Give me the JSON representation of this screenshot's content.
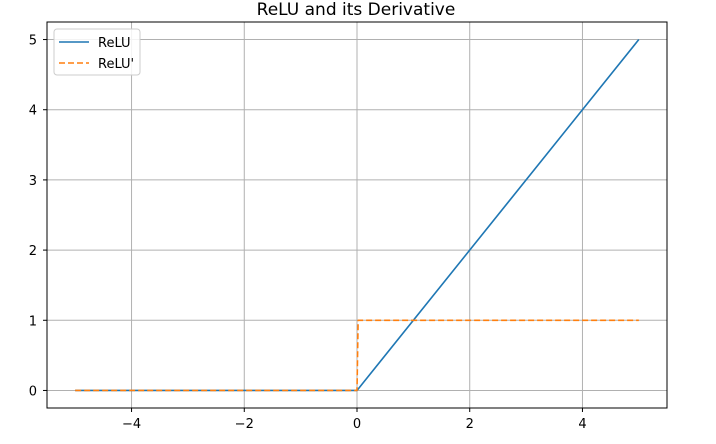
{
  "chart_data": {
    "type": "line",
    "title": "ReLU and its Derivative",
    "xlabel": "",
    "ylabel": "",
    "xlim": [
      -5.5,
      5.5
    ],
    "ylim": [
      -0.25,
      5.25
    ],
    "x_ticks": [
      -4,
      -2,
      0,
      2,
      4
    ],
    "x_tick_labels": [
      "−4",
      "−2",
      "0",
      "2",
      "4"
    ],
    "y_ticks": [
      0,
      1,
      2,
      3,
      4,
      5
    ],
    "y_tick_labels": [
      "0",
      "1",
      "2",
      "3",
      "4",
      "5"
    ],
    "grid": true,
    "legend": "top-left",
    "series": [
      {
        "name": "ReLU",
        "color": "#1f77b4",
        "style": "solid",
        "x": [
          -5,
          0,
          5
        ],
        "y": [
          0,
          0,
          5
        ]
      },
      {
        "name": "ReLU'",
        "color": "#ff7f0e",
        "style": "dashed",
        "x": [
          -5,
          0,
          0.02,
          5
        ],
        "y": [
          0,
          0,
          1,
          1
        ]
      }
    ]
  }
}
